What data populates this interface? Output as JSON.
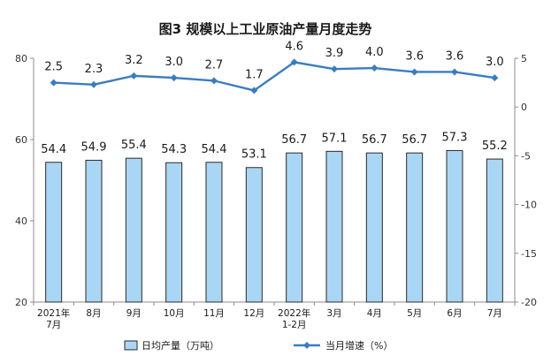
{
  "chart_data": {
    "type": "bar",
    "title": "图3  规模以上工业原油产量月度走势",
    "categories": [
      [
        "2021年",
        "7月"
      ],
      [
        "8月"
      ],
      [
        "9月"
      ],
      [
        "10月"
      ],
      [
        "11月"
      ],
      [
        "12月"
      ],
      [
        "2022年",
        "1-2月"
      ],
      [
        "3月"
      ],
      [
        "4月"
      ],
      [
        "5月"
      ],
      [
        "6月"
      ],
      [
        "7月"
      ]
    ],
    "series": [
      {
        "name": "日均产量（万吨）",
        "type": "bar",
        "axis": "left",
        "values": [
          54.4,
          54.9,
          55.4,
          54.3,
          54.4,
          53.1,
          56.7,
          57.1,
          56.7,
          56.7,
          57.3,
          55.2
        ],
        "labels": [
          "54.4",
          "54.9",
          "55.4",
          "54.3",
          "54.4",
          "53.1",
          "56.7",
          "57.1",
          "56.7",
          "56.7",
          "57.3",
          "55.2"
        ]
      },
      {
        "name": "当月增速（%）",
        "type": "line",
        "axis": "right",
        "values": [
          2.5,
          2.3,
          3.2,
          3.0,
          2.7,
          1.7,
          4.6,
          3.9,
          4.0,
          3.6,
          3.6,
          3.0
        ],
        "labels": [
          "2.5",
          "2.3",
          "3.2",
          "3.0",
          "2.7",
          "1.7",
          "4.6",
          "3.9",
          "4.0",
          "3.6",
          "3.6",
          "3.0"
        ]
      }
    ],
    "y_left": {
      "ylim": [
        20,
        80
      ],
      "ticks": [
        "80",
        "60",
        "40",
        "20"
      ],
      "tick_values": [
        80,
        60,
        40,
        20
      ]
    },
    "y_right": {
      "ylim": [
        -20,
        5
      ],
      "ticks": [
        "5",
        "0",
        "-5",
        "-10",
        "-15",
        "-20"
      ],
      "tick_values": [
        5,
        0,
        -5,
        -10,
        -15,
        -20
      ]
    },
    "grid": false,
    "legend_position": "bottom",
    "colors": {
      "bar_fill": "#a9d6f5",
      "bar_stroke": "#2a2a2a",
      "line": "#3a7cc2",
      "axis": "#8c8c8c"
    }
  }
}
